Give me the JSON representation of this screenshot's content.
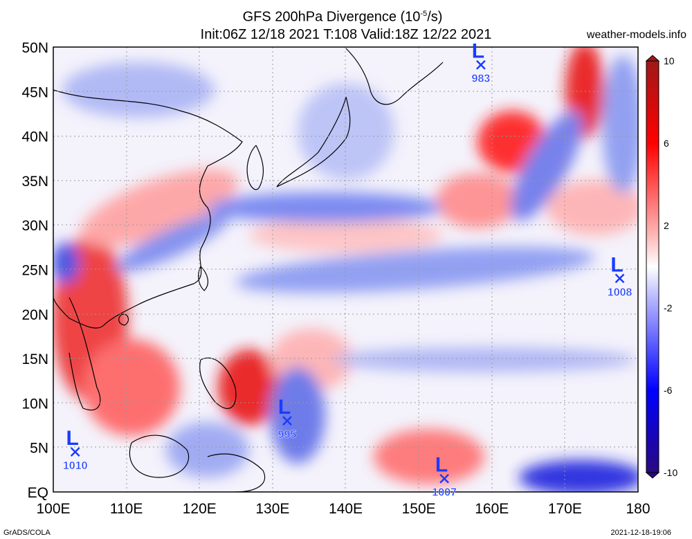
{
  "title_line1": "GFS 200hPa Divergence (10",
  "title_sup": "-5",
  "title_line1_end": "/s)",
  "title_line2": "Init:06Z 12/18 2021  T:108  Valid:18Z 12/22 2021",
  "site": "weather-models.info",
  "footer_left": "GrADS/COLA",
  "footer_right": "2021-12-18-19:06",
  "lat_labels": [
    "50N",
    "45N",
    "40N",
    "35N",
    "30N",
    "25N",
    "20N",
    "15N",
    "10N",
    "5N",
    "EQ"
  ],
  "lon_labels": [
    "100E",
    "110E",
    "120E",
    "130E",
    "140E",
    "150E",
    "160E",
    "170E",
    "180"
  ],
  "colorbar_labels": [
    "10",
    "6",
    "2",
    "-2",
    "-6",
    "-10"
  ],
  "lows": [
    {
      "symbol": "L",
      "pressure": "983",
      "lon": 158.5,
      "lat": 48
    },
    {
      "symbol": "L",
      "pressure": "1008",
      "lon": 177.5,
      "lat": 24
    },
    {
      "symbol": "L",
      "pressure": "995",
      "lon": 132,
      "lat": 8
    },
    {
      "symbol": "L",
      "pressure": "1010",
      "lon": 103,
      "lat": 4.5
    },
    {
      "symbol": "L",
      "pressure": "1007",
      "lon": 153.5,
      "lat": 1.5
    }
  ],
  "map_extent": {
    "lon": [
      100,
      180
    ],
    "lat": [
      0,
      50
    ]
  },
  "colors": {
    "positive": "#e00000",
    "negative": "#1010e0",
    "neutral": "#ffffff",
    "low_marker": "#1a3bff",
    "grid": "#999999"
  }
}
